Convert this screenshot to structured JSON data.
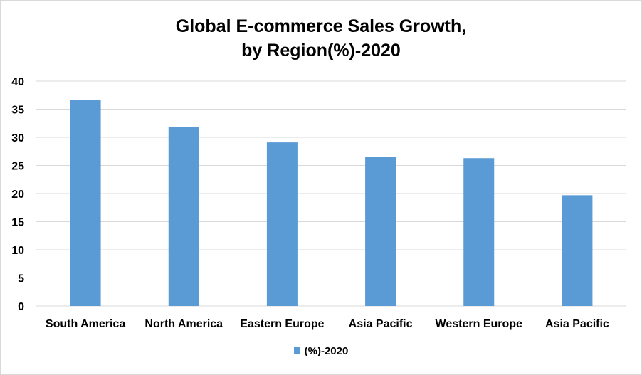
{
  "chart_data": {
    "type": "bar",
    "title_line1": "Global E-commerce Sales Growth,",
    "title_line2": "by Region(%)-2020",
    "xlabel": "",
    "ylabel": "",
    "categories": [
      "South America",
      "North America",
      "Eastern Europe",
      "Asia Pacific",
      "Western Europe",
      "Asia Pacific"
    ],
    "series": [
      {
        "name": "(%)-2020",
        "values": [
          36.7,
          31.8,
          29.1,
          26.5,
          26.3,
          19.7
        ],
        "color": "#5b9bd5"
      }
    ],
    "ylim": [
      0,
      40
    ],
    "yticks": [
      0,
      5,
      10,
      15,
      20,
      25,
      30,
      35,
      40
    ],
    "grid": true,
    "gridColor": "#d9d9d9",
    "legend": "bottom-center"
  }
}
